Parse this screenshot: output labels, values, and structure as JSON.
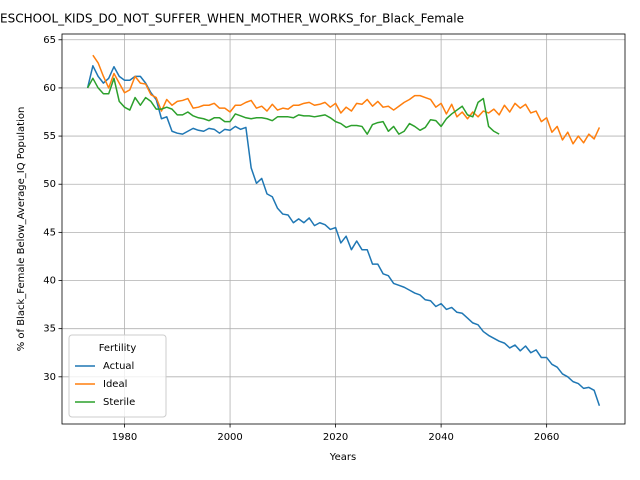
{
  "chart_data": {
    "type": "line",
    "title": "ESCHOOL_KIDS_DO_NOT_SUFFER_WHEN_MOTHER_WORKS_for_Black_Female",
    "xlabel": "Years",
    "ylabel": "% of Black_Female Below_Average_IQ Population",
    "legend_title": "Fertility",
    "legend_position": "lower left",
    "grid": true,
    "xlim": [
      1968.15,
      2074.85
    ],
    "ylim": [
      25.1,
      65.6
    ],
    "xticks": [
      1980,
      2000,
      2020,
      2040,
      2060
    ],
    "yticks": [
      30,
      35,
      40,
      45,
      50,
      55,
      60,
      65
    ],
    "x": [
      1973,
      1974,
      1975,
      1976,
      1977,
      1978,
      1979,
      1980,
      1981,
      1982,
      1983,
      1984,
      1985,
      1986,
      1987,
      1988,
      1989,
      1990,
      1991,
      1992,
      1993,
      1994,
      1995,
      1996,
      1997,
      1998,
      1999,
      2000,
      2001,
      2002,
      2003,
      2004,
      2005,
      2006,
      2007,
      2008,
      2009,
      2010,
      2011,
      2012,
      2013,
      2014,
      2015,
      2016,
      2017,
      2018,
      2019,
      2020,
      2021,
      2022,
      2023,
      2024,
      2025,
      2026,
      2027,
      2028,
      2029,
      2030,
      2031,
      2032,
      2033,
      2034,
      2035,
      2036,
      2037,
      2038,
      2039,
      2040,
      2041,
      2042,
      2043,
      2044,
      2045,
      2046,
      2047,
      2048,
      2049,
      2050,
      2051,
      2052,
      2053,
      2054,
      2055,
      2056,
      2057,
      2058,
      2059,
      2060,
      2061,
      2062,
      2063,
      2064,
      2065,
      2066,
      2067,
      2068,
      2069,
      2070
    ],
    "series": [
      {
        "name": "Actual",
        "color": "#1f77b4",
        "values": [
          60.0,
          62.3,
          61.2,
          60.5,
          61.0,
          62.2,
          61.2,
          60.8,
          60.8,
          61.2,
          61.2,
          60.5,
          59.5,
          58.8,
          56.8,
          57.0,
          55.5,
          55.3,
          55.2,
          55.5,
          55.8,
          55.6,
          55.5,
          55.8,
          55.7,
          55.3,
          55.7,
          55.6,
          56.0,
          55.7,
          55.9,
          51.7,
          50.1,
          50.6,
          49.0,
          48.7,
          47.5,
          46.9,
          46.8,
          46.0,
          46.4,
          46.0,
          46.5,
          45.7,
          46.0,
          45.8,
          45.3,
          45.5,
          43.9,
          44.6,
          43.2,
          44.1,
          43.2,
          43.2,
          41.7,
          41.7,
          40.7,
          40.5,
          39.7,
          39.5,
          39.3,
          39.0,
          38.7,
          38.5,
          38.0,
          37.9,
          37.3,
          37.6,
          37.0,
          37.2,
          36.7,
          36.6,
          36.1,
          35.6,
          35.4,
          34.7,
          34.3,
          34.0,
          33.7,
          33.5,
          33.0,
          33.3,
          32.7,
          33.2,
          32.5,
          32.8,
          32.0,
          32.0,
          31.3,
          31.0,
          30.3,
          30.0,
          29.5,
          29.3,
          28.8,
          28.9,
          28.6,
          27.0
        ]
      },
      {
        "name": "Ideal",
        "color": "#ff7f0e",
        "values": [
          null,
          63.4,
          62.6,
          61.2,
          60.0,
          61.5,
          60.5,
          59.5,
          59.8,
          61.2,
          60.5,
          60.4,
          59.3,
          59.0,
          57.6,
          58.8,
          58.2,
          58.6,
          58.7,
          58.9,
          57.9,
          58.0,
          58.2,
          58.2,
          58.4,
          57.9,
          57.9,
          57.5,
          58.2,
          58.2,
          58.5,
          58.7,
          57.9,
          58.1,
          57.6,
          58.3,
          57.7,
          57.9,
          57.8,
          58.2,
          58.2,
          58.4,
          58.5,
          58.2,
          58.3,
          58.5,
          58.0,
          58.4,
          57.4,
          58.0,
          57.6,
          58.4,
          58.3,
          58.8,
          58.1,
          58.6,
          58.0,
          58.1,
          57.7,
          58.1,
          58.5,
          58.8,
          59.2,
          59.2,
          59.0,
          58.8,
          58.0,
          58.4,
          57.3,
          58.3,
          57.0,
          57.5,
          56.8,
          57.5,
          57.0,
          57.6,
          57.4,
          57.8,
          57.2,
          58.2,
          57.5,
          58.4,
          57.9,
          58.3,
          57.4,
          57.6,
          56.5,
          56.9,
          55.4,
          56.0,
          54.6,
          55.4,
          54.2,
          55.0,
          54.3,
          55.2,
          54.7,
          55.9
        ]
      },
      {
        "name": "Sterile",
        "color": "#2ca02c",
        "values": [
          60.0,
          61.0,
          60.0,
          59.4,
          59.4,
          61.0,
          58.6,
          58.0,
          57.7,
          59.0,
          58.2,
          59.0,
          58.6,
          57.8,
          57.8,
          58.0,
          57.8,
          57.2,
          57.2,
          57.5,
          57.1,
          56.9,
          56.8,
          56.6,
          56.9,
          56.9,
          56.5,
          56.5,
          57.3,
          57.1,
          56.9,
          56.8,
          56.9,
          56.9,
          56.8,
          56.6,
          57.0,
          57.0,
          57.0,
          56.9,
          57.2,
          57.1,
          57.1,
          57.0,
          57.1,
          57.2,
          56.9,
          56.5,
          56.3,
          55.9,
          56.1,
          56.1,
          56.0,
          55.2,
          56.2,
          56.4,
          56.5,
          55.5,
          56.0,
          55.2,
          55.5,
          56.3,
          56.0,
          55.6,
          55.9,
          56.7,
          56.6,
          56.0,
          56.8,
          57.3,
          57.7,
          58.1,
          57.2,
          57.0,
          58.5,
          58.9,
          56.0,
          55.5,
          55.2,
          null,
          null,
          null,
          null,
          null,
          null,
          null,
          null,
          null,
          null,
          null,
          null,
          null,
          null,
          null,
          null,
          null,
          null,
          null
        ]
      }
    ]
  }
}
